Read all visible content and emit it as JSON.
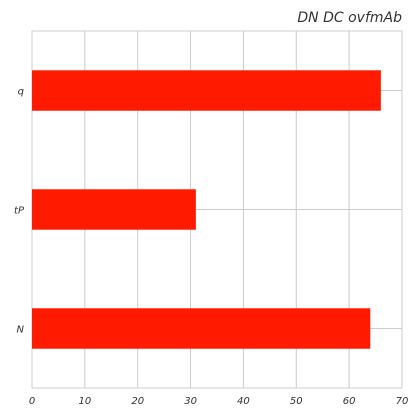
{
  "chart_data": {
    "type": "bar",
    "orientation": "horizontal",
    "title": "DN  DC ovfmAb",
    "xlabel": "",
    "ylabel": "",
    "categories": [
      "N",
      "tP",
      "q"
    ],
    "values": [
      64,
      31,
      66
    ],
    "xlim": [
      0,
      70
    ],
    "xticks": [
      0,
      10,
      20,
      30,
      40,
      50,
      60,
      70
    ],
    "grid": true,
    "bar_color": "#ff1a00"
  }
}
